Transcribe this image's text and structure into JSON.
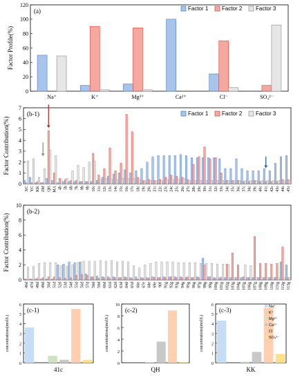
{
  "colors": {
    "f1_fill": "#a9c4eb",
    "f1_stroke": "#4a78c2",
    "f2_fill": "#f4a8a0",
    "f2_stroke": "#d2453a",
    "f3_fill": "#e6e6e6",
    "f3_stroke": "#8c8c8c",
    "ion": [
      "#c7dcf5",
      "#f6c9bf",
      "#cde2c3",
      "#c8c8c8",
      "#ffcfb0",
      "#ffe08a"
    ]
  },
  "chart_data": [
    {
      "id": "a",
      "type": "bar",
      "panel_label": "(a)",
      "ylabel": "Factor Profile(%)",
      "ylim": [
        0,
        120
      ],
      "yticks": [
        0,
        20,
        40,
        60,
        80,
        100,
        120
      ],
      "categories": [
        "Na⁺",
        "K⁺",
        "Mg²⁺",
        "Ca²⁺",
        "Cl⁻",
        "SO₄²⁻"
      ],
      "legend": [
        "Factor 1",
        "Factor 2",
        "Factor 3"
      ],
      "series": [
        {
          "name": "Factor 1",
          "values": [
            50,
            8,
            10,
            100,
            24,
            0
          ]
        },
        {
          "name": "Factor 2",
          "values": [
            0,
            90,
            88,
            0,
            70,
            8
          ]
        },
        {
          "name": "Factor 3",
          "values": [
            49,
            2,
            2,
            0,
            5,
            92
          ]
        }
      ]
    },
    {
      "id": "b1",
      "type": "bar",
      "panel_label": "(b-1)",
      "ylabel": "Factor Contribution(%)",
      "ylim": [
        0,
        7
      ],
      "yticks": [
        0,
        1,
        2,
        3,
        4,
        5,
        6,
        7
      ],
      "legend": [
        "Factor 1",
        "Factor 2",
        "Factor 3"
      ],
      "categories": [
        "XC",
        "YC",
        "KK",
        "ZM",
        "QH",
        "MA",
        "4b",
        "5b",
        "6b",
        "7b",
        "8b",
        "9b",
        "10c",
        "11c",
        "12c",
        "13c",
        "14c",
        "15c",
        "16c",
        "17c",
        "18c",
        "19c",
        "20c",
        "21c",
        "22c",
        "23c",
        "24c",
        "25c",
        "26c",
        "27c",
        "28c",
        "29c",
        "30c",
        "31c",
        "32c",
        "33c",
        "34c",
        "35c",
        "36c",
        "37c",
        "38c",
        "39c",
        "40c",
        "41c",
        "42c",
        "43c",
        "44c",
        "45c"
      ],
      "series": [
        {
          "name": "Factor 1",
          "values": [
            0.3,
            0.6,
            0.1,
            0.1,
            0.5,
            0.3,
            0.1,
            0.2,
            0.2,
            0.2,
            0.2,
            0.2,
            0.2,
            0.3,
            0.6,
            0.7,
            0.9,
            1.0,
            1.3,
            1.0,
            1.2,
            1.4,
            2.0,
            2.5,
            2.6,
            2.6,
            2.6,
            2.6,
            2.7,
            2.6,
            2.4,
            2.4,
            2.4,
            2.4,
            2.4,
            2.3,
            1.4,
            1.4,
            2.3,
            1.4,
            1.2,
            1.2,
            1.2,
            1.4,
            1.2,
            1.9,
            2.5,
            2.6
          ]
        },
        {
          "name": "Factor 2",
          "values": [
            0.1,
            0.1,
            0.2,
            0.1,
            4.9,
            1.0,
            0.5,
            0.4,
            0.3,
            0.3,
            0.2,
            0.2,
            2.8,
            0.8,
            1.4,
            3.3,
            1.2,
            1.9,
            6.4,
            4.8,
            0.6,
            0.3,
            0.4,
            0.3,
            0.4,
            0.6,
            0.8,
            0.7,
            0.6,
            0.4,
            1.8,
            2.5,
            3.4,
            2.3,
            2.4,
            1.0,
            0.3,
            0.3,
            0.3,
            0.2,
            0.2,
            0.3,
            0.2,
            0.2,
            0.2,
            0.2,
            0.4,
            0.4
          ]
        },
        {
          "name": "Factor 3",
          "values": [
            2.1,
            2.3,
            0.6,
            1.4,
            3.1,
            2.6,
            0.4,
            0.5,
            1.2,
            1.7,
            1.5,
            2.0,
            2.1,
            0.4,
            0.5,
            0.4,
            0.4,
            0.5,
            0.5,
            0.5,
            0.4,
            0.3,
            0.3,
            0.3,
            0.3,
            0.4,
            0.4,
            0.4,
            0.5,
            0.3,
            0.3,
            0.3,
            0.3,
            0.3,
            0.3,
            0.3,
            0.3,
            0.3,
            0.3,
            0.3,
            0.3,
            0.3,
            0.3,
            0.3,
            0.3,
            0.3,
            0.3,
            0.3
          ]
        }
      ],
      "arrows": [
        {
          "category": "ZM",
          "color": "#8c8c8c",
          "from": 3.8,
          "to": 2.6
        },
        {
          "category": "QH",
          "color": "#b0352b",
          "from": 7.3,
          "to": 5.2
        },
        {
          "category": "41c",
          "color": "#2f5fa8",
          "from": 2.5,
          "to": 1.5
        }
      ]
    },
    {
      "id": "b2",
      "type": "bar",
      "panel_label": "(b-2)",
      "ylabel": "Factor Contribution(%)",
      "ylim": [
        0,
        10
      ],
      "yticks": [
        0,
        2,
        4,
        6,
        8,
        10
      ],
      "categories": [
        "46d",
        "47d",
        "48d",
        "49d",
        "50d",
        "51d",
        "52d",
        "53d",
        "54d",
        "55d",
        "56d",
        "57d",
        "58d",
        "59d",
        "60d",
        "61d",
        "62d",
        "63d",
        "64d",
        "65d",
        "66e",
        "67e",
        "68e",
        "69e",
        "90f",
        "91g",
        "92g",
        "93g",
        "94g",
        "95g",
        "96g",
        "97g",
        "98g",
        "99g",
        "100g",
        "101g",
        "102g",
        "103g",
        "104g",
        "105g",
        "106g",
        "107g",
        "108g",
        "109g",
        "110g",
        "111g",
        "112g",
        "113g"
      ],
      "series": [
        {
          "name": "Factor 1",
          "values": [
            0.1,
            0.1,
            0.1,
            0.1,
            0.1,
            0.1,
            2.0,
            2.1,
            2.4,
            2.3,
            2.4,
            0.8,
            0.4,
            0.5,
            0.4,
            0.4,
            0.4,
            0.3,
            0.4,
            0.3,
            0.4,
            0.3,
            0.3,
            0.4,
            0.3,
            0.4,
            0.4,
            0.4,
            0.4,
            0.3,
            0.3,
            0.4,
            2.9,
            0.4,
            0.3,
            0.3,
            0.3,
            0.3,
            0.3,
            0.3,
            0.3,
            0.3,
            0.3,
            0.3,
            0.3,
            0.3,
            2.4,
            2.0
          ]
        },
        {
          "name": "Factor 2",
          "values": [
            0.1,
            0.1,
            0.2,
            0.3,
            0.4,
            0.4,
            0.3,
            0.2,
            0.3,
            0.6,
            0.7,
            0.6,
            0.4,
            0.2,
            0.3,
            0.2,
            0.3,
            0.3,
            0.3,
            0.2,
            0.1,
            0.2,
            0.2,
            0.3,
            0.3,
            0.3,
            0.4,
            0.3,
            0.3,
            0.4,
            0.3,
            0.3,
            2.0,
            0.4,
            0.2,
            0.3,
            2.1,
            3.6,
            2.0,
            0.4,
            0.3,
            5.8,
            2.2,
            2.2,
            2.1,
            2.2,
            4.4,
            0.3
          ]
        },
        {
          "name": "Factor 3",
          "values": [
            1.7,
            1.8,
            2.2,
            2.3,
            2.3,
            2.3,
            1.9,
            1.8,
            2.0,
            2.3,
            2.5,
            2.5,
            2.5,
            2.6,
            2.5,
            2.6,
            2.4,
            2.5,
            2.4,
            1.9,
            1.6,
            2.0,
            2.2,
            2.4,
            2.4,
            2.4,
            2.4,
            2.3,
            2.3,
            2.3,
            2.3,
            2.2,
            2.2,
            2.2,
            2.1,
            2.1,
            2.0,
            0.3,
            0.3,
            2.0,
            1.9,
            0.3,
            0.3,
            0.3,
            0.3,
            0.3,
            0.3,
            0.3
          ]
        }
      ]
    },
    {
      "id": "c1",
      "type": "bar",
      "panel_label": "(c-1)",
      "xlabel": "41c",
      "ylabel": "concentrations(mol/L)",
      "ylim": [
        0,
        6
      ],
      "yticks": [
        0,
        1,
        2,
        3,
        4,
        5,
        6
      ],
      "categories": [
        "Na⁺",
        "K⁺",
        "Mg²⁺",
        "Ca²⁺",
        "Cl",
        "SO₄²⁻"
      ],
      "values": [
        3.6,
        0.0,
        0.7,
        0.3,
        5.5,
        0.3
      ]
    },
    {
      "id": "c2",
      "type": "bar",
      "panel_label": "(c-2)",
      "xlabel": "QH",
      "ylabel": "concentrations(mol/L)",
      "ylim": [
        0,
        10
      ],
      "yticks": [
        0,
        2,
        4,
        6,
        8,
        10
      ],
      "categories": [
        "Na⁺",
        "K⁺",
        "Mg²⁺",
        "Ca²⁺",
        "Cl",
        "SO₄²⁻"
      ],
      "values": [
        0.0,
        0.0,
        0.1,
        3.6,
        8.9,
        0.1
      ]
    },
    {
      "id": "c3",
      "type": "bar",
      "panel_label": "(c-3)",
      "xlabel": "KK",
      "ylabel": "concentrations(mol/L)",
      "ylim": [
        0,
        6
      ],
      "yticks": [
        0,
        1,
        2,
        3,
        4,
        5,
        6
      ],
      "categories": [
        "Na⁺",
        "K⁺",
        "Mg²⁺",
        "Ca²⁺",
        "Cl",
        "SO₄²⁻"
      ],
      "legend": [
        "Na⁺",
        "K⁺",
        "Mg²⁺",
        "Ca²⁺",
        "Cl",
        "SO₄²⁻"
      ],
      "values": [
        4.3,
        0.0,
        0.1,
        1.1,
        5.6,
        0.9
      ]
    }
  ]
}
